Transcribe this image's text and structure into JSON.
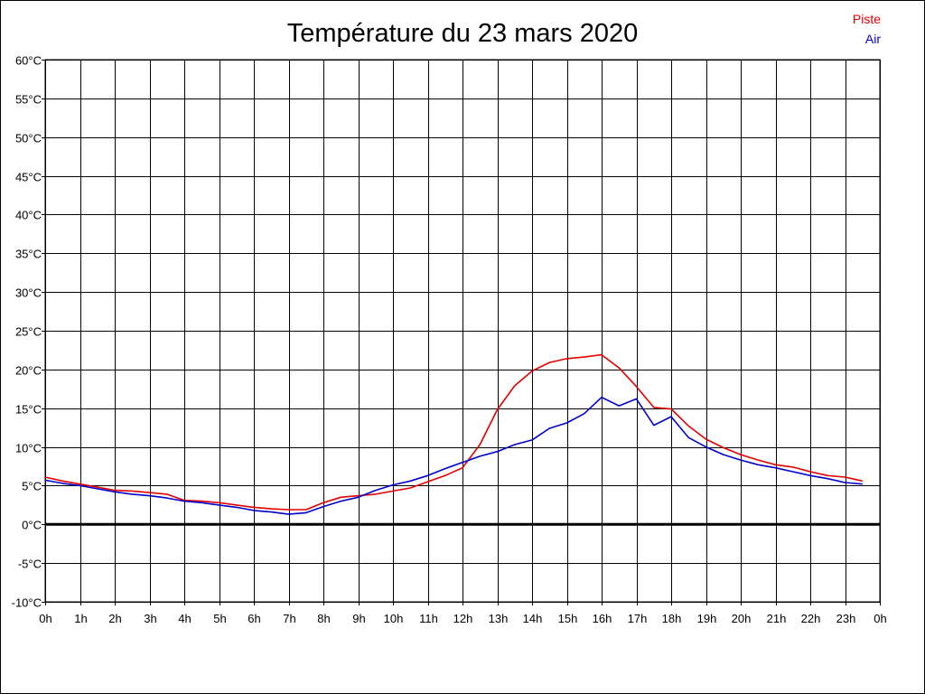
{
  "chart_data": {
    "type": "line",
    "title": "Température du 23 mars 2020",
    "xlabel": "",
    "ylabel": "",
    "x_tick_labels": [
      "0h",
      "1h",
      "2h",
      "3h",
      "4h",
      "5h",
      "6h",
      "7h",
      "8h",
      "9h",
      "10h",
      "11h",
      "12h",
      "13h",
      "14h",
      "15h",
      "16h",
      "17h",
      "18h",
      "19h",
      "20h",
      "21h",
      "22h",
      "23h",
      "0h"
    ],
    "y_tick_labels": [
      "-10°C",
      "-5°C",
      "0°C",
      "5°C",
      "10°C",
      "15°C",
      "20°C",
      "25°C",
      "30°C",
      "35°C",
      "40°C",
      "45°C",
      "50°C",
      "55°C",
      "60°C"
    ],
    "xlim": [
      0,
      24
    ],
    "ylim": [
      -10,
      60
    ],
    "grid": true,
    "zero_line": true,
    "legend_position": "top-right",
    "x": [
      0,
      0.5,
      1,
      1.5,
      2,
      2.5,
      3,
      3.5,
      4,
      4.5,
      5,
      5.5,
      6,
      6.5,
      7,
      7.5,
      8,
      8.5,
      9,
      9.5,
      10,
      10.5,
      11,
      11.5,
      12,
      12.5,
      13,
      13.5,
      14,
      14.5,
      15,
      15.5,
      16,
      16.5,
      17,
      17.5,
      18,
      18.5,
      19,
      19.5,
      20,
      20.5,
      21,
      21.5,
      22,
      22.5,
      23,
      23.5
    ],
    "series": [
      {
        "name": "Piste",
        "color": "#e00000",
        "values": [
          6.1,
          5.6,
          5.2,
          4.8,
          4.4,
          4.3,
          4.1,
          3.9,
          3.1,
          3.0,
          2.8,
          2.5,
          2.2,
          2.0,
          1.9,
          1.9,
          2.8,
          3.5,
          3.7,
          3.9,
          4.3,
          4.7,
          5.5,
          6.3,
          7.3,
          10.3,
          14.8,
          17.9,
          19.8,
          20.9,
          21.4,
          21.6,
          21.9,
          20.2,
          17.8,
          15.1,
          14.9,
          12.7,
          11.0,
          9.9,
          9.0,
          8.3,
          7.7,
          7.4,
          6.8,
          6.3,
          6.1,
          5.6
        ]
      },
      {
        "name": "Air",
        "color": "#0000cc",
        "values": [
          5.7,
          5.3,
          5.0,
          4.6,
          4.2,
          3.9,
          3.7,
          3.4,
          3.0,
          2.8,
          2.5,
          2.2,
          1.8,
          1.6,
          1.3,
          1.5,
          2.3,
          3.0,
          3.5,
          4.4,
          5.1,
          5.6,
          6.3,
          7.2,
          8.0,
          8.8,
          9.4,
          10.3,
          10.9,
          12.4,
          13.1,
          14.3,
          16.4,
          15.3,
          16.2,
          12.8,
          13.9,
          11.2,
          10.0,
          9.0,
          8.3,
          7.7,
          7.3,
          6.8,
          6.3,
          5.9,
          5.4,
          5.2
        ]
      }
    ]
  }
}
